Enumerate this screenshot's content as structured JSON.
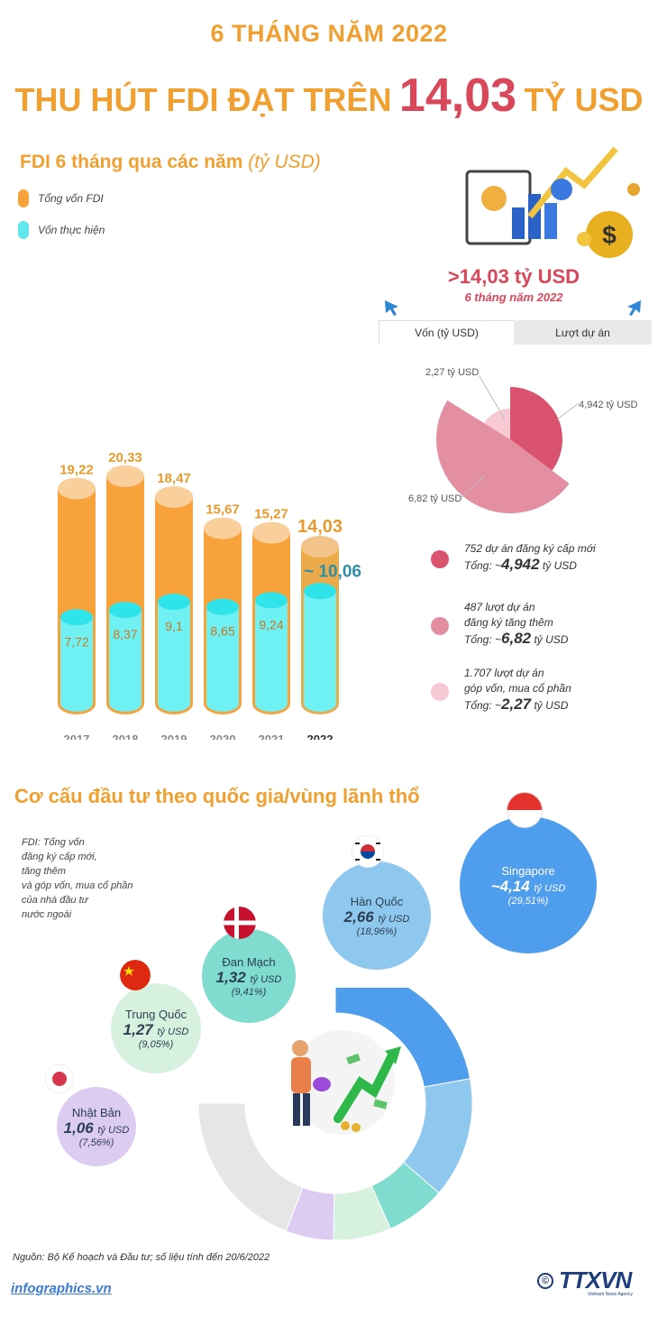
{
  "header": {
    "subtitle": "6 THÁNG NĂM 2022",
    "title_prefix": "THU HÚT FDI ĐẠT TRÊN",
    "title_value": "14,03",
    "title_suffix": "TỶ USD"
  },
  "fdi_chart": {
    "title": "FDI 6 tháng qua các năm",
    "unit": "(tỷ USD)",
    "legend": [
      {
        "label": "Tổng vốn FDI",
        "color": "#f7a23a"
      },
      {
        "label": "Vốn thực hiện",
        "color": "#5ee8ee"
      }
    ]
  },
  "chart_data": {
    "type": "bar",
    "categories": [
      "2017",
      "2018",
      "2019",
      "2020",
      "2021",
      "2022"
    ],
    "series": [
      {
        "name": "Tổng vốn FDI",
        "values": [
          19.22,
          20.33,
          18.47,
          15.67,
          15.27,
          14.03
        ],
        "labels": [
          "19,22",
          "20,33",
          "18,47",
          "15,67",
          "15,27",
          "14,03"
        ]
      },
      {
        "name": "Vốn thực hiện",
        "values": [
          7.72,
          8.37,
          9.1,
          8.65,
          9.24,
          10.06
        ],
        "labels": [
          "7,72",
          "8,37",
          "9,1",
          "8,65",
          "9,24",
          "~ 10,06"
        ]
      }
    ],
    "ylim": [
      0,
      21
    ]
  },
  "summary": {
    "total": ">14,03 tỷ USD",
    "period": "6 tháng năm 2022",
    "tabs": [
      "Vốn (tỷ USD)",
      "Lượt dự án"
    ]
  },
  "pie": {
    "slices": [
      {
        "value": 4.942,
        "label": "4,942 tỷ USD",
        "color": "#d9536e"
      },
      {
        "value": 6.82,
        "label": "6,82 tỷ USD",
        "color": "#e48ea2"
      },
      {
        "value": 2.27,
        "label": "2,27 tỷ USD",
        "color": "#f7c9d3"
      }
    ],
    "legend": [
      {
        "line1": "752 dự án đăng ký cấp mới",
        "line2": "",
        "total_prefix": "Tổng: ~",
        "total_value": "4,942",
        "total_unit": "tỷ USD",
        "color": "#d9536e"
      },
      {
        "line1": "487 lượt dự án",
        "line2": "đăng ký tăng thêm",
        "total_prefix": "Tổng: ~",
        "total_value": "6,82",
        "total_unit": "tỷ USD",
        "color": "#e48ea2"
      },
      {
        "line1": "1.707 lượt dự án",
        "line2": "góp vốn, mua cổ phần",
        "total_prefix": "Tổng: ~",
        "total_value": "2,27",
        "total_unit": "tỷ USD",
        "color": "#f7c9d3"
      }
    ]
  },
  "countries": {
    "title": "Cơ cấu đầu tư theo quốc gia/vùng lãnh thổ",
    "note": [
      "FDI: Tổng vốn",
      "đăng ký cấp mới,",
      "tăng thêm",
      "và góp vốn, mua cổ phần",
      "của nhà đầu tư",
      "nước ngoài"
    ],
    "items": [
      {
        "name": "Singapore",
        "value": "~4,14",
        "unit": "tỷ USD",
        "pct": "(29,51%)",
        "share": 29.51,
        "color": "#4f9ded",
        "text_color": "#ffffff"
      },
      {
        "name": "Hàn Quốc",
        "value": "2,66",
        "unit": "tỷ USD",
        "pct": "(18,96%)",
        "share": 18.96,
        "color": "#8fc8ef",
        "text_color": "#2c3e50"
      },
      {
        "name": "Đan Mạch",
        "value": "1,32",
        "unit": "tỷ USD",
        "pct": "(9,41%)",
        "share": 9.41,
        "color": "#7fdccf",
        "text_color": "#2c3e50"
      },
      {
        "name": "Trung Quốc",
        "value": "1,27",
        "unit": "tỷ USD",
        "pct": "(9,05%)",
        "share": 9.05,
        "color": "#d6f2df",
        "text_color": "#2c3e50"
      },
      {
        "name": "Nhật Bản",
        "value": "1,06",
        "unit": "tỷ USD",
        "pct": "(7,56%)",
        "share": 7.56,
        "color": "#dcccf2",
        "text_color": "#2c3e50"
      }
    ],
    "other_color": "#e6e6e6"
  },
  "footer": {
    "source": "Nguồn: Bộ Kế hoạch và Đầu tư; số liệu tính đến 20/6/2022",
    "site": "infographics.vn",
    "logo": "TTXVN",
    "logo_sub": "Vietnam News Agency"
  }
}
